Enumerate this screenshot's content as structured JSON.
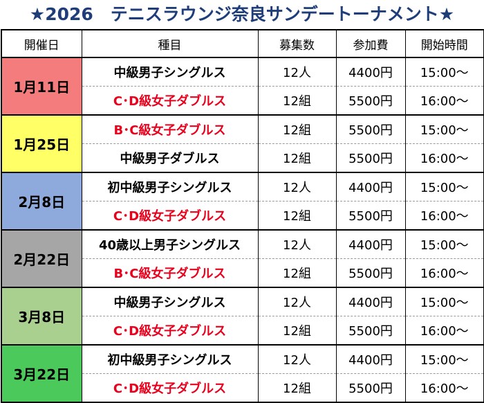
{
  "title": "★2026　テニスラウンジ奈良サンデートーナメント★",
  "headers": {
    "date": "開催日",
    "event": "種目",
    "capacity": "募集数",
    "fee": "参加費",
    "start": "開始時間"
  },
  "colors": {
    "title": "#1f3d79",
    "red_text": "#e8001c",
    "date_bg": [
      "#f47c7c",
      "#ffff66",
      "#8ea9db",
      "#a6a6a6",
      "#a9d08e",
      "#4bc95a"
    ]
  },
  "schedule": [
    {
      "date": "1月11日",
      "events": [
        {
          "name": "中級男子シングルス",
          "red": false,
          "capacity": "12人",
          "fee": "4400円",
          "start": "15:00～"
        },
        {
          "name": "C･D級女子ダブルス",
          "red": true,
          "capacity": "12組",
          "fee": "5500円",
          "start": "16:00～"
        }
      ]
    },
    {
      "date": "1月25日",
      "events": [
        {
          "name": "B･C級女子ダブルス",
          "red": true,
          "capacity": "12組",
          "fee": "5500円",
          "start": "15:00～"
        },
        {
          "name": "中級男子ダブルス",
          "red": false,
          "capacity": "12組",
          "fee": "5500円",
          "start": "16:00～"
        }
      ]
    },
    {
      "date": "2月8日",
      "events": [
        {
          "name": "初中級男子シングルス",
          "red": false,
          "capacity": "12人",
          "fee": "4400円",
          "start": "15:00～"
        },
        {
          "name": "C･D級女子ダブルス",
          "red": true,
          "capacity": "12組",
          "fee": "5500円",
          "start": "16:00～"
        }
      ]
    },
    {
      "date": "2月22日",
      "events": [
        {
          "name": "40歳以上男子シングルス",
          "red": false,
          "capacity": "12人",
          "fee": "4400円",
          "start": "15:00～"
        },
        {
          "name": "B･C級女子ダブルス",
          "red": true,
          "capacity": "12組",
          "fee": "5500円",
          "start": "16:00～"
        }
      ]
    },
    {
      "date": "3月8日",
      "events": [
        {
          "name": "中級男子シングルス",
          "red": false,
          "capacity": "12人",
          "fee": "4400円",
          "start": "15:00～"
        },
        {
          "name": "C･D級女子ダブルス",
          "red": true,
          "capacity": "12組",
          "fee": "5500円",
          "start": "16:00～"
        }
      ]
    },
    {
      "date": "3月22日",
      "events": [
        {
          "name": "初中級男子シングルス",
          "red": false,
          "capacity": "12人",
          "fee": "4400円",
          "start": "15:00～"
        },
        {
          "name": "C･D級女子ダブルス",
          "red": true,
          "capacity": "12組",
          "fee": "5500円",
          "start": "16:00～"
        }
      ]
    }
  ]
}
